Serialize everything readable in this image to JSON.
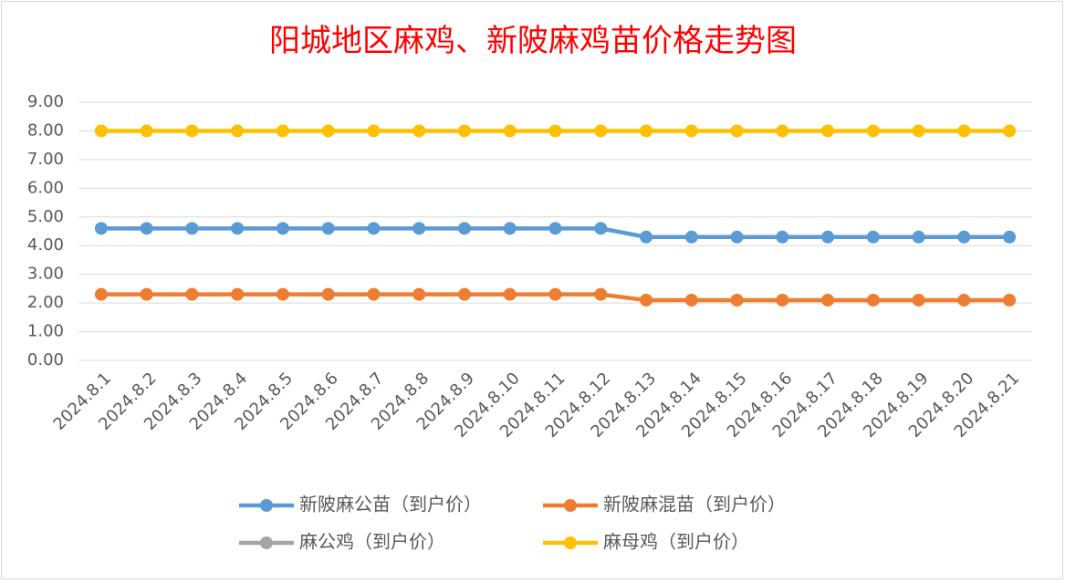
{
  "chart_data": {
    "type": "line",
    "title": "阳城地区麻鸡、新陂麻鸡苗价格走势图",
    "categories": [
      "2024.8.1",
      "2024.8.2",
      "2024.8.3",
      "2024.8.4",
      "2024.8.5",
      "2024.8.6",
      "2024.8.7",
      "2024.8.8",
      "2024.8.9",
      "2024.8.10",
      "2024.8.11",
      "2024.8.12",
      "2024.8.13",
      "2024.8.14",
      "2024.8.15",
      "2024.8.16",
      "2024.8.17",
      "2024.8.18",
      "2024.8.19",
      "2024.8.20",
      "2024.8.21"
    ],
    "series": [
      {
        "name": "新陂麻公苗（到户价）",
        "color": "#5b9bd5",
        "values": [
          4.6,
          4.6,
          4.6,
          4.6,
          4.6,
          4.6,
          4.6,
          4.6,
          4.6,
          4.6,
          4.6,
          4.6,
          4.3,
          4.3,
          4.3,
          4.3,
          4.3,
          4.3,
          4.3,
          4.3,
          4.3
        ]
      },
      {
        "name": "新陂麻混苗（到户价）",
        "color": "#ed7d31",
        "values": [
          2.3,
          2.3,
          2.3,
          2.3,
          2.3,
          2.3,
          2.3,
          2.3,
          2.3,
          2.3,
          2.3,
          2.3,
          2.1,
          2.1,
          2.1,
          2.1,
          2.1,
          2.1,
          2.1,
          2.1,
          2.1
        ]
      },
      {
        "name": "麻公鸡（到户价）",
        "color": "#a5a5a5",
        "values": [
          null,
          null,
          null,
          null,
          null,
          null,
          null,
          null,
          null,
          null,
          null,
          null,
          null,
          null,
          null,
          null,
          null,
          null,
          null,
          null,
          null
        ]
      },
      {
        "name": "麻母鸡（到户价）",
        "color": "#ffc000",
        "values": [
          8,
          8,
          8,
          8,
          8,
          8,
          8,
          8,
          8,
          8,
          8,
          8,
          8,
          8,
          8,
          8,
          8,
          8,
          8,
          8,
          8
        ]
      }
    ],
    "ylim": [
      0,
      9
    ],
    "yticks": [
      {
        "value": 0,
        "label": "0.00"
      },
      {
        "value": 1,
        "label": "1.00"
      },
      {
        "value": 2,
        "label": "2.00"
      },
      {
        "value": 3,
        "label": "3.00"
      },
      {
        "value": 4,
        "label": "4.00"
      },
      {
        "value": 5,
        "label": "5.00"
      },
      {
        "value": 6,
        "label": "6.00"
      },
      {
        "value": 7,
        "label": "7.00"
      },
      {
        "value": 8,
        "label": "8.00"
      },
      {
        "value": 9,
        "label": "9.00"
      }
    ],
    "grid": true
  }
}
